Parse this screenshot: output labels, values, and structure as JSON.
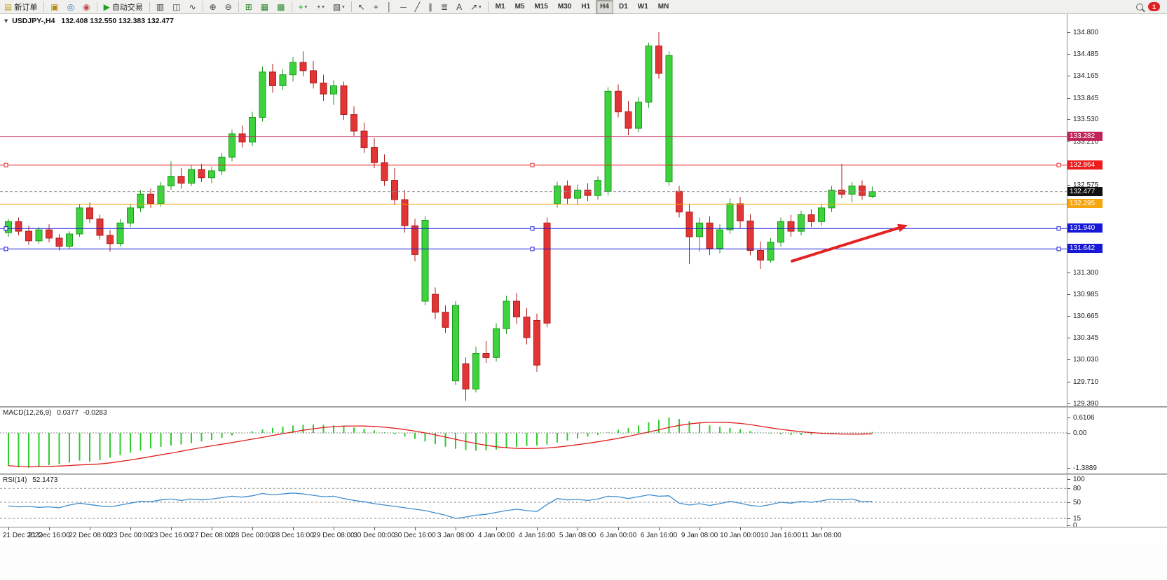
{
  "toolbar": {
    "notification_count": "1",
    "timeframes": [
      "M1",
      "M5",
      "M15",
      "M30",
      "H1",
      "H4",
      "D1",
      "W1",
      "MN"
    ],
    "active_timeframe": "H4",
    "groups": [
      {
        "name": "trade",
        "items": [
          {
            "name": "new-order-button",
            "glyph": "▤",
            "glyph_color": "#c9a227",
            "label": "新订单"
          }
        ]
      },
      {
        "name": "windows",
        "items": [
          {
            "name": "charts-window-button",
            "glyph": "▣",
            "glyph_color": "#b8860b"
          },
          {
            "name": "data-window-button",
            "glyph": "◎",
            "glyph_color": "#3a6fc4"
          },
          {
            "name": "alerts-button",
            "glyph": "◉",
            "glyph_color": "#cc4444"
          }
        ]
      },
      {
        "name": "autotrade",
        "items": [
          {
            "name": "autotrading-button",
            "glyph": "▶",
            "glyph_color": "#18a018",
            "label": "自动交易"
          }
        ]
      },
      {
        "name": "chart-type",
        "items": [
          {
            "name": "bar-chart-button",
            "glyph": "▥",
            "glyph_color": "#444444"
          },
          {
            "name": "candlestick-chart-button",
            "glyph": "◫",
            "glyph_color": "#444444"
          },
          {
            "name": "line-chart-button",
            "glyph": "∿",
            "glyph_color": "#444444"
          }
        ]
      },
      {
        "name": "zoom",
        "items": [
          {
            "name": "zoom-in-button",
            "glyph": "⊕",
            "glyph_color": "#444444"
          },
          {
            "name": "zoom-out-button",
            "glyph": "⊖",
            "glyph_color": "#444444"
          }
        ]
      },
      {
        "name": "arrange",
        "items": [
          {
            "name": "tile-windows-button",
            "glyph": "⊞",
            "glyph_color": "#2e8b2e"
          },
          {
            "name": "auto-scroll-button",
            "glyph": "▦",
            "glyph_color": "#2e8b2e"
          },
          {
            "name": "chart-shift-button",
            "glyph": "▩",
            "glyph_color": "#2e8b2e"
          }
        ]
      },
      {
        "name": "insert",
        "items": [
          {
            "name": "indicators-button",
            "glyph": "+",
            "glyph_color": "#18a018",
            "caret": true
          },
          {
            "name": "periods-button",
            "glyph": "◔",
            "glyph_color": "#444444",
            "caret": true
          },
          {
            "name": "templates-button",
            "glyph": "▧",
            "glyph_color": "#444444",
            "caret": true
          }
        ]
      },
      {
        "name": "line-studies",
        "items": [
          {
            "name": "cursor-button",
            "glyph": "↖",
            "glyph_color": "#444444"
          },
          {
            "name": "crosshair-button",
            "glyph": "+",
            "glyph_color": "#444444"
          },
          {
            "name": "vertical-line-button",
            "glyph": "│",
            "glyph_color": "#444444"
          },
          {
            "name": "horizontal-line-button",
            "glyph": "─",
            "glyph_color": "#444444"
          },
          {
            "name": "trendline-button",
            "glyph": "╱",
            "glyph_color": "#444444"
          },
          {
            "name": "equidistant-channel-button",
            "glyph": "∥",
            "glyph_color": "#444444"
          },
          {
            "name": "fibonacci-button",
            "glyph": "≣",
            "glyph_color": "#444444"
          },
          {
            "name": "text-button",
            "glyph": "A",
            "glyph_color": "#444444"
          },
          {
            "name": "arrows-button",
            "glyph": "↗",
            "glyph_color": "#444444",
            "caret": true
          }
        ]
      }
    ]
  },
  "chart_data": [
    {
      "type": "candlestick",
      "title": "USDJPY-,H4",
      "one_click_glyph": "▾",
      "ohlc_text": "132.408 132.550 132.383 132.477",
      "last_ohlc": {
        "open": 132.408,
        "high": 132.55,
        "low": 132.383,
        "close": 132.477
      },
      "ylim": [
        129.39,
        134.8
      ],
      "grid": false,
      "colors": {
        "bull": "#3fd23f",
        "bull_border": "#1c9a1c",
        "bear": "#e23535",
        "bear_border": "#b01d1d",
        "background": "#ffffff"
      },
      "y_ticks": [
        "134.800",
        "134.485",
        "134.165",
        "133.845",
        "133.530",
        "133.210",
        "132.575",
        "131.300",
        "130.985",
        "130.665",
        "130.345",
        "130.030",
        "129.710",
        "129.390"
      ],
      "levels": [
        {
          "value": 133.282,
          "label": "133.282",
          "color": "#c22358",
          "style": "solid",
          "anchors": false
        },
        {
          "value": 132.864,
          "label": "132.864",
          "color": "#ee1c1c",
          "style": "solid",
          "anchors": true
        },
        {
          "value": 132.477,
          "label": "132.477",
          "color": "#111111",
          "line_color": "#909090",
          "style": "dashed",
          "anchors": false,
          "role": "bid"
        },
        {
          "value": 132.295,
          "label": "132.295",
          "color": "#f7a50a",
          "style": "solid",
          "anchors": false
        },
        {
          "value": 131.94,
          "label": "131.940",
          "color": "#1818d8",
          "style": "solid",
          "anchors": true
        },
        {
          "value": 131.642,
          "label": "131.642",
          "color": "#1818d8",
          "style": "solid",
          "anchors": true
        }
      ],
      "annotation_arrow": {
        "color": "#e42222",
        "width": 4,
        "start": {
          "bar": 77,
          "price": 131.46
        },
        "end": {
          "bar": 88.5,
          "price": 131.99
        }
      },
      "x_label_step": 4,
      "x_labels": [
        "21 Dec 2022",
        "21 Dec 16:00",
        "22 Dec 08:00",
        "23 Dec 00:00",
        "23 Dec 16:00",
        "27 Dec 08:00",
        "28 Dec 00:00",
        "28 Dec 16:00",
        "29 Dec 08:00",
        "30 Dec 00:00",
        "30 Dec 16:00",
        "3 Jan 08:00",
        "4 Jan 00:00",
        "4 Jan 16:00",
        "5 Jan 08:00",
        "6 Jan 00:00",
        "6 Jan 16:00",
        "9 Jan 08:00",
        "10 Jan 00:00",
        "10 Jan 16:00",
        "11 Jan 08:00"
      ],
      "candles": [
        [
          131.88,
          132.08,
          131.82,
          132.04
        ],
        [
          132.04,
          132.1,
          131.84,
          131.9
        ],
        [
          131.9,
          131.98,
          131.7,
          131.76
        ],
        [
          131.76,
          131.96,
          131.72,
          131.92
        ],
        [
          131.92,
          132.0,
          131.74,
          131.8
        ],
        [
          131.8,
          131.86,
          131.62,
          131.68
        ],
        [
          131.68,
          131.9,
          131.64,
          131.86
        ],
        [
          131.86,
          132.3,
          131.82,
          132.24
        ],
        [
          132.24,
          132.32,
          132.02,
          132.08
        ],
        [
          132.08,
          132.14,
          131.78,
          131.84
        ],
        [
          131.84,
          131.92,
          131.6,
          131.72
        ],
        [
          131.72,
          132.08,
          131.68,
          132.02
        ],
        [
          132.02,
          132.3,
          131.96,
          132.24
        ],
        [
          132.24,
          132.5,
          132.18,
          132.44
        ],
        [
          132.44,
          132.52,
          132.24,
          132.3
        ],
        [
          132.3,
          132.62,
          132.26,
          132.56
        ],
        [
          132.56,
          132.92,
          132.5,
          132.7
        ],
        [
          132.7,
          132.82,
          132.52,
          132.6
        ],
        [
          132.6,
          132.86,
          132.56,
          132.8
        ],
        [
          132.8,
          132.88,
          132.62,
          132.68
        ],
        [
          132.68,
          132.84,
          132.6,
          132.78
        ],
        [
          132.78,
          133.04,
          132.72,
          132.98
        ],
        [
          132.98,
          133.38,
          132.92,
          133.32
        ],
        [
          133.32,
          133.44,
          133.12,
          133.2
        ],
        [
          133.2,
          133.64,
          133.14,
          133.56
        ],
        [
          133.56,
          134.3,
          133.5,
          134.22
        ],
        [
          134.22,
          134.34,
          133.92,
          134.02
        ],
        [
          134.02,
          134.26,
          133.96,
          134.18
        ],
        [
          134.18,
          134.44,
          134.08,
          134.36
        ],
        [
          134.36,
          134.52,
          134.16,
          134.24
        ],
        [
          134.24,
          134.38,
          133.98,
          134.06
        ],
        [
          134.06,
          134.18,
          133.8,
          133.9
        ],
        [
          133.9,
          134.1,
          133.74,
          134.02
        ],
        [
          134.02,
          134.08,
          133.52,
          133.6
        ],
        [
          133.6,
          133.72,
          133.28,
          133.36
        ],
        [
          133.36,
          133.48,
          133.04,
          133.12
        ],
        [
          133.12,
          133.26,
          132.82,
          132.9
        ],
        [
          132.9,
          133.02,
          132.56,
          132.64
        ],
        [
          132.64,
          132.82,
          132.28,
          132.36
        ],
        [
          132.36,
          132.5,
          131.88,
          131.98
        ],
        [
          131.98,
          132.08,
          131.46,
          131.56
        ],
        [
          130.88,
          132.12,
          130.82,
          132.06
        ],
        [
          130.98,
          131.08,
          130.62,
          130.72
        ],
        [
          130.72,
          130.82,
          130.42,
          130.5
        ],
        [
          129.72,
          130.88,
          129.66,
          130.82
        ],
        [
          129.97,
          130.06,
          129.43,
          129.6
        ],
        [
          129.6,
          130.22,
          129.55,
          130.12
        ],
        [
          130.12,
          130.3,
          129.98,
          130.06
        ],
        [
          130.06,
          130.56,
          130.0,
          130.48
        ],
        [
          130.48,
          130.96,
          130.4,
          130.88
        ],
        [
          130.88,
          131.0,
          130.55,
          130.65
        ],
        [
          130.65,
          130.78,
          130.25,
          130.35
        ],
        [
          130.6,
          130.7,
          129.85,
          129.95
        ],
        [
          132.02,
          132.1,
          130.5,
          130.56
        ],
        [
          132.3,
          132.62,
          132.24,
          132.56
        ],
        [
          132.56,
          132.64,
          132.3,
          132.38
        ],
        [
          132.38,
          132.58,
          132.28,
          132.5
        ],
        [
          132.5,
          132.6,
          132.34,
          132.42
        ],
        [
          132.42,
          132.7,
          132.36,
          132.64
        ],
        [
          132.48,
          134.0,
          132.42,
          133.94
        ],
        [
          133.94,
          134.04,
          133.56,
          133.64
        ],
        [
          133.64,
          133.8,
          133.3,
          133.4
        ],
        [
          133.4,
          133.85,
          133.34,
          133.78
        ],
        [
          133.78,
          134.65,
          133.7,
          134.6
        ],
        [
          134.6,
          134.8,
          134.12,
          134.2
        ],
        [
          132.62,
          134.52,
          132.56,
          134.46
        ],
        [
          132.48,
          132.56,
          132.1,
          132.18
        ],
        [
          132.18,
          132.3,
          131.42,
          131.82
        ],
        [
          131.82,
          132.1,
          131.6,
          132.02
        ],
        [
          132.02,
          132.12,
          131.55,
          131.65
        ],
        [
          131.65,
          132.0,
          131.58,
          131.92
        ],
        [
          131.92,
          132.38,
          131.86,
          132.3
        ],
        [
          132.3,
          132.4,
          131.95,
          132.05
        ],
        [
          132.05,
          132.15,
          131.55,
          131.62
        ],
        [
          131.62,
          131.75,
          131.35,
          131.48
        ],
        [
          131.48,
          131.8,
          131.44,
          131.74
        ],
        [
          131.74,
          132.1,
          131.68,
          132.04
        ],
        [
          132.04,
          132.14,
          131.82,
          131.9
        ],
        [
          131.9,
          132.2,
          131.84,
          132.14
        ],
        [
          132.14,
          132.22,
          131.96,
          132.04
        ],
        [
          132.04,
          132.3,
          131.98,
          132.24
        ],
        [
          132.24,
          132.56,
          132.18,
          132.5
        ],
        [
          132.5,
          132.88,
          132.38,
          132.44
        ],
        [
          132.44,
          132.62,
          132.32,
          132.56
        ],
        [
          132.56,
          132.64,
          132.36,
          132.42
        ],
        [
          132.408,
          132.55,
          132.383,
          132.477
        ]
      ]
    },
    {
      "type": "bar",
      "name": "MACD(12,26,9)",
      "value_main": "0.0377",
      "value_signal": "-0.0283",
      "ylim": [
        -1.3889,
        0.6106
      ],
      "y_ticks": [
        "0.6106",
        "0.00",
        "-1.3889"
      ],
      "colors": {
        "histogram": "#2ecc2e",
        "signal": "#e02020"
      },
      "signal_period": 9,
      "values": [
        -1.3,
        -1.36,
        -1.38,
        -1.32,
        -1.28,
        -1.24,
        -1.18,
        -1.1,
        -1.14,
        -1.08,
        -0.98,
        -0.88,
        -0.78,
        -0.7,
        -0.62,
        -0.55,
        -0.5,
        -0.46,
        -0.4,
        -0.34,
        -0.28,
        -0.2,
        -0.1,
        -0.02,
        0.06,
        0.14,
        0.2,
        0.25,
        0.29,
        0.32,
        0.33,
        0.32,
        0.3,
        0.26,
        0.21,
        0.16,
        0.1,
        0.03,
        -0.05,
        -0.14,
        -0.24,
        -0.34,
        -0.45,
        -0.55,
        -0.63,
        -0.68,
        -0.7,
        -0.69,
        -0.66,
        -0.61,
        -0.56,
        -0.52,
        -0.5,
        -0.46,
        -0.38,
        -0.3,
        -0.22,
        -0.15,
        -0.08,
        0.02,
        0.12,
        0.2,
        0.3,
        0.42,
        0.52,
        0.61,
        0.55,
        0.46,
        0.38,
        0.3,
        0.24,
        0.2,
        0.14,
        0.08,
        0.02,
        -0.03,
        -0.06,
        -0.08,
        -0.08,
        -0.07,
        -0.05,
        -0.03,
        -0.02,
        -0.01,
        -0.02,
        0.0377
      ]
    },
    {
      "type": "line",
      "name": "RSI(14)",
      "value": "52.1473",
      "ylim": [
        0,
        100
      ],
      "levels": [
        80,
        50,
        15
      ],
      "y_ticks": [
        "100",
        "80",
        "50",
        "15",
        "0"
      ],
      "color": "#3e8ed0",
      "values": [
        42,
        40,
        41,
        39,
        40,
        38,
        44,
        48,
        45,
        42,
        40,
        44,
        48,
        52,
        51,
        55,
        57,
        54,
        57,
        55,
        57,
        60,
        63,
        61,
        64,
        69,
        66,
        68,
        70,
        68,
        65,
        62,
        63,
        58,
        54,
        51,
        47,
        44,
        41,
        38,
        35,
        32,
        27,
        22,
        15,
        18,
        22,
        24,
        28,
        32,
        35,
        32,
        30,
        45,
        58,
        55,
        56,
        54,
        57,
        63,
        62,
        58,
        62,
        66,
        63,
        64,
        48,
        44,
        47,
        43,
        47,
        52,
        48,
        43,
        41,
        45,
        50,
        48,
        52,
        50,
        53,
        57,
        55,
        57,
        51,
        52.1473
      ]
    }
  ]
}
